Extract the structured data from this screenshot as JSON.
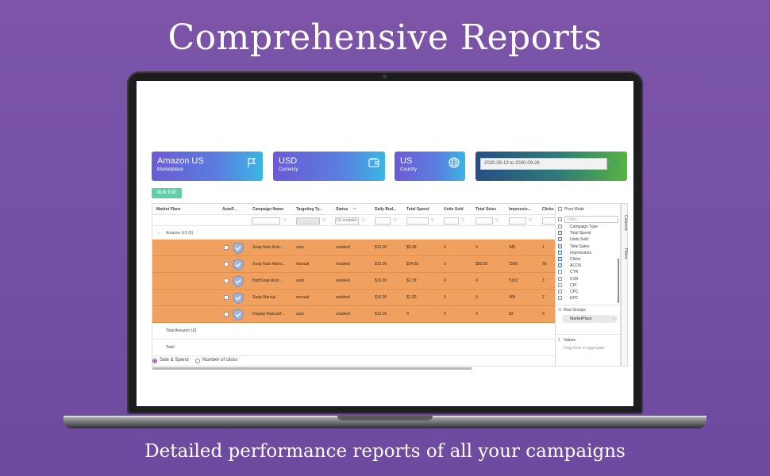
{
  "headline": "Comprehensive Reports",
  "tagline": "Detailed performance reports of all your campaigns",
  "cards": {
    "marketplace": {
      "value": "Amazon US",
      "label": "Marketplace",
      "icon": "flag-icon"
    },
    "currency": {
      "value": "USD",
      "label": "Currency",
      "icon": "money-icon"
    },
    "country": {
      "value": "US",
      "label": "Country",
      "icon": "globe-icon"
    },
    "date_range": "2020-09-19 to 2020-09-26"
  },
  "bulk_edit": "Bulk Edit",
  "grid": {
    "headers": [
      "Market Place",
      "AutoP...",
      "Campaign Name",
      "Targeting Ty...",
      "Status",
      "Daily Bud...",
      "Total Spend",
      "Units Sold",
      "Total Sales",
      "Impressio...",
      "Clicks"
    ],
    "status_filter_value": "(1) enabled",
    "group_label": "Amazon US (5)",
    "rows": [
      {
        "campaign": "Soap Nuts Auto...",
        "targeting": "auto",
        "status": "enabled",
        "budget": "$10.00",
        "spend": "$0.98",
        "units": "0",
        "sales": "0",
        "impressions": "345",
        "clicks": "1"
      },
      {
        "campaign": "Soap Nuts Manu...",
        "targeting": "manual",
        "status": "enabled",
        "budget": "$10.00",
        "spend": "$24.55",
        "units": "3",
        "sales": "$83.00",
        "impressions": "1566",
        "clicks": "56"
      },
      {
        "campaign": "BathSoap Auto...",
        "targeting": "auto",
        "status": "enabled",
        "budget": "$10.00",
        "spend": "$2.78",
        "units": "0",
        "sales": "0",
        "impressions": "5193",
        "clicks": "3"
      },
      {
        "campaign": "Soap Manual",
        "targeting": "manual",
        "status": "enabled",
        "budget": "$10.00",
        "spend": "$1.00",
        "units": "0",
        "sales": "0",
        "impressions": "406",
        "clicks": "2"
      },
      {
        "campaign": "Display-NaturalT...",
        "targeting": "auto",
        "status": "enabled",
        "budget": "$10.00",
        "spend": "0",
        "units": "0",
        "sales": "0",
        "impressions": "83",
        "clicks": "0"
      }
    ],
    "total_group_label": "Total Amazon US",
    "total_label": "Total",
    "radio_options": [
      "Sale & Spend",
      "Number of clicks"
    ]
  },
  "panel": {
    "pivot_mode": "Pivot Mode",
    "filter_placeholder": "Filter...",
    "columns": [
      {
        "label": "Campaign Type",
        "checked": false
      },
      {
        "label": "Total Spend",
        "checked": true
      },
      {
        "label": "Units Sold",
        "checked": true
      },
      {
        "label": "Total Sales",
        "checked": true
      },
      {
        "label": "Impressions",
        "checked": true
      },
      {
        "label": "Clicks",
        "checked": true
      },
      {
        "label": "ACOS",
        "checked": true
      },
      {
        "label": "CTR",
        "checked": false
      },
      {
        "label": "CVR",
        "checked": false
      },
      {
        "label": "CPI",
        "checked": false
      },
      {
        "label": "CPC",
        "checked": false
      },
      {
        "label": "EPC",
        "checked": false
      }
    ],
    "row_groups_title": "Row Groups",
    "row_group_chip": "MarketPlace",
    "values_title": "Values",
    "values_hint": "Drag here to aggregate",
    "tabs": [
      "Columns",
      "Filters"
    ]
  },
  "colors": {
    "row_highlight": "#f0a15f",
    "accent_button": "#5fd0a8",
    "background": "#7650a6"
  }
}
